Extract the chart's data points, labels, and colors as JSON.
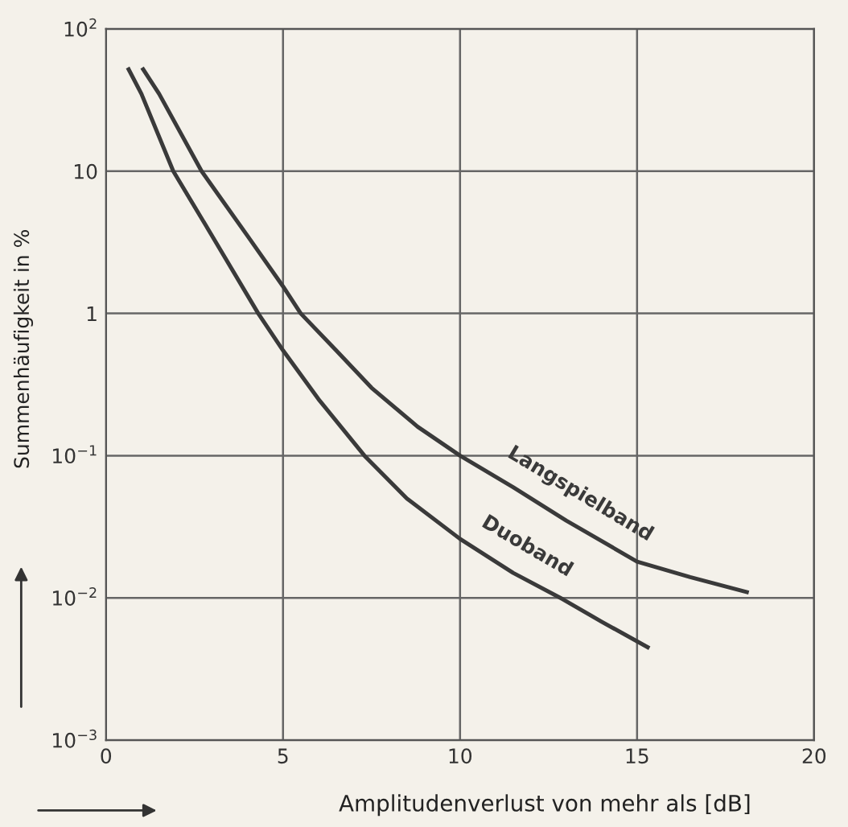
{
  "chart_data": {
    "type": "line",
    "log": "y",
    "grid": true,
    "legend": false,
    "marker": "none",
    "line_style": "solid",
    "xlabel": "Amplitudenverlust von mehr als [dB]",
    "ylabel": "Summenhäufigkeit in %",
    "xlim": [
      0,
      20
    ],
    "xticks": [
      0,
      5,
      10,
      15,
      20
    ],
    "ylim": [
      0.001,
      100
    ],
    "yticks": [
      {
        "value": 0.001,
        "label": "10$^{−3}$"
      },
      {
        "value": 0.01,
        "label": "10$^{−2}$"
      },
      {
        "value": 0.1,
        "label": "10$^{−1}$"
      },
      1,
      10,
      {
        "value": 100,
        "label": "10$^{2}$"
      }
    ],
    "series": [
      {
        "name": "Langspielband",
        "color": "#3a3a3a",
        "x": [
          1.05,
          1.5,
          2.7,
          4,
          5,
          5.5,
          6.5,
          7.5,
          8.8,
          10,
          11.5,
          13,
          15,
          16.5,
          18.1
        ],
        "values": [
          52,
          35,
          10,
          3.5,
          1.55,
          1,
          0.55,
          0.3,
          0.16,
          0.1,
          0.06,
          0.035,
          0.018,
          0.014,
          0.011
        ]
      },
      {
        "name": "Duoband",
        "color": "#3a3a3a",
        "x": [
          0.64,
          1.0,
          1.9,
          3,
          4.3,
          5,
          6,
          7.3,
          8.5,
          10,
          11.5,
          12.9,
          14,
          15.3
        ],
        "values": [
          52,
          35,
          10,
          3.5,
          1,
          0.55,
          0.25,
          0.1,
          0.05,
          0.026,
          0.015,
          0.0098,
          0.0068,
          0.0045
        ]
      }
    ]
  }
}
